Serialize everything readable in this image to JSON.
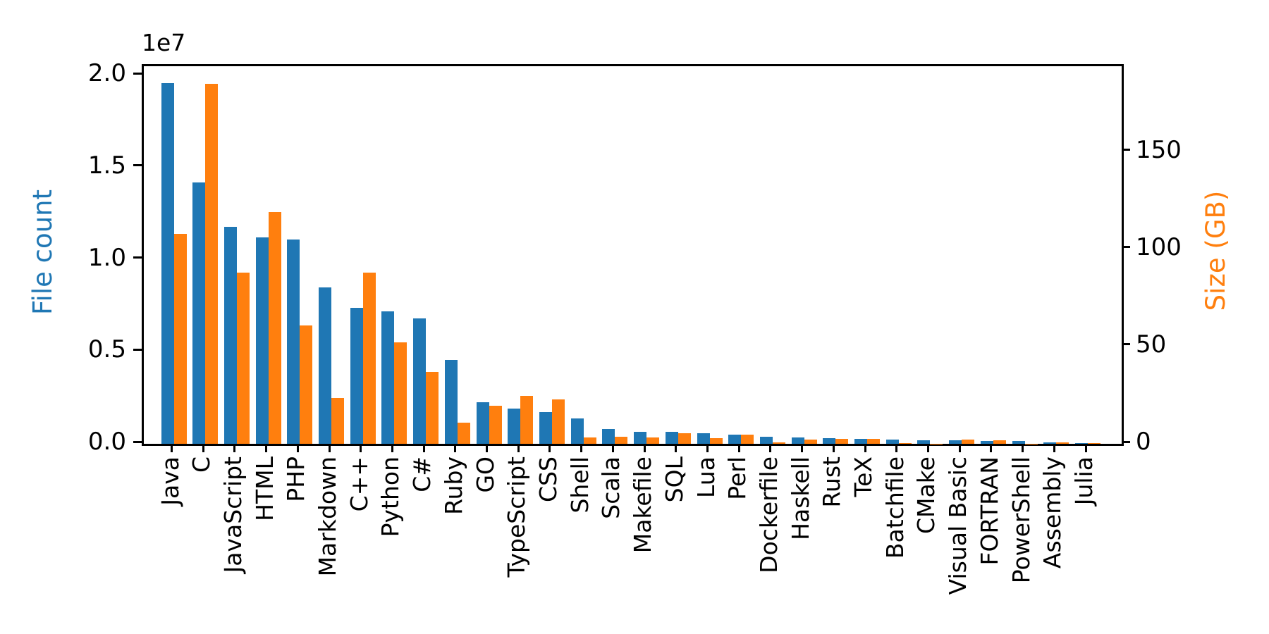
{
  "figure": {
    "offset_text": "1e7",
    "left_axis": {
      "label": "File count",
      "color": "#1f77b4"
    },
    "right_axis": {
      "label": "Size (GB)",
      "color": "#ff7f0e"
    }
  },
  "chart_data": {
    "type": "bar",
    "title": "",
    "xlabel": "",
    "categories": [
      "Java",
      "C",
      "JavaScript",
      "HTML",
      "PHP",
      "Markdown",
      "C++",
      "Python",
      "C#",
      "Ruby",
      "GO",
      "TypeScript",
      "CSS",
      "Shell",
      "Scala",
      "Makefile",
      "SQL",
      "Lua",
      "Perl",
      "Dockerfile",
      "Haskell",
      "Rust",
      "TeX",
      "Batchfile",
      "CMake",
      "Visual Basic",
      "FORTRAN",
      "PowerShell",
      "Assembly",
      "Julia"
    ],
    "series": [
      {
        "name": "File count",
        "axis": "left",
        "color": "#1f77b4",
        "values": [
          19600000,
          14200000,
          11800000,
          11200000,
          11100000,
          8500000,
          7400000,
          7200000,
          6800000,
          4550000,
          2250000,
          1930000,
          1740000,
          1390000,
          810000,
          670000,
          660000,
          580000,
          500000,
          370000,
          340000,
          320000,
          260000,
          250000,
          190000,
          190000,
          160000,
          150000,
          70000,
          50000
        ]
      },
      {
        "name": "Size (GB)",
        "axis": "right",
        "color": "#ff7f0e",
        "values": [
          108,
          185,
          88,
          119,
          61,
          23.5,
          88,
          52,
          37,
          11,
          19.5,
          24.5,
          23,
          3.1,
          3.8,
          3.1,
          5.4,
          2.8,
          4.7,
          0.9,
          2.1,
          2.7,
          2.5,
          0.3,
          0.15,
          2.2,
          2.0,
          0.15,
          0.6,
          0.25
        ]
      }
    ],
    "left_axis": {
      "label": "File count",
      "ylim": [
        0,
        20500000
      ],
      "tick_values": [
        0,
        5000000,
        10000000,
        15000000,
        20000000
      ],
      "tick_labels": [
        "0.0",
        "0.5",
        "1.0",
        "1.5",
        "2.0"
      ],
      "offset_text": "1e7"
    },
    "right_axis": {
      "label": "Size (GB)",
      "ylim": [
        0,
        194
      ],
      "tick_values": [
        0,
        50,
        100,
        150
      ],
      "tick_labels": [
        "0",
        "50",
        "100",
        "150"
      ]
    },
    "grid": false,
    "legend": "none"
  }
}
